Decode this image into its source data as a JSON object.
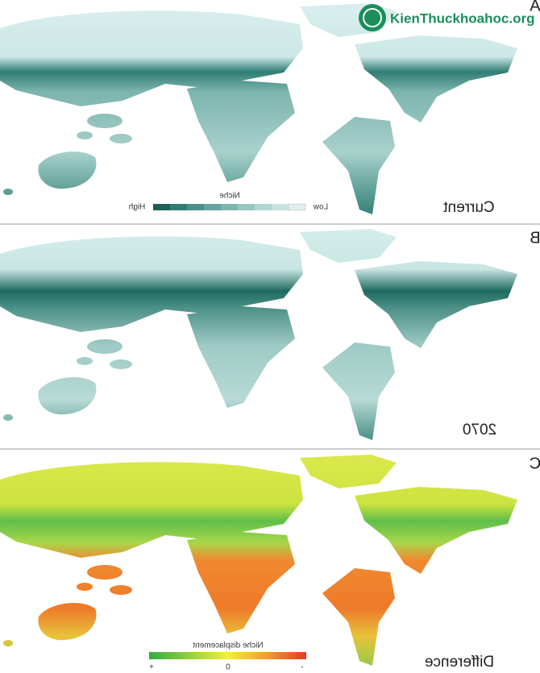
{
  "watermark": "KienThuckhoahoc.org",
  "panels": [
    {
      "letter": "A",
      "label": "Current"
    },
    {
      "letter": "B",
      "label": "2070"
    },
    {
      "letter": "C",
      "label": "Difference"
    }
  ],
  "legend_niche": {
    "title": "Niche",
    "high": "High",
    "low": "Low"
  },
  "legend_displacement": {
    "title": "Niche displacement",
    "ticks": [
      "+",
      "0",
      "-"
    ]
  }
}
